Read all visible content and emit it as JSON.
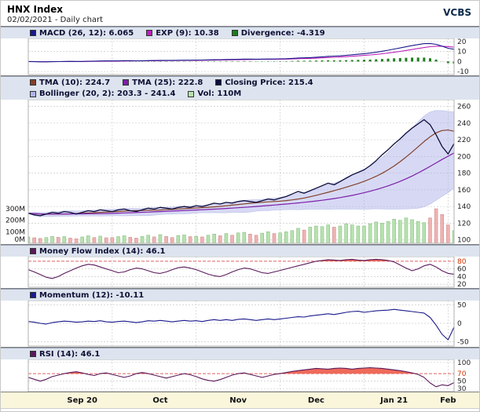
{
  "header": {
    "title": "HNX Index",
    "subtitle": "02/02/2021 - Daily chart",
    "brand": "VCBS"
  },
  "colors": {
    "macd": "#1a1a8c",
    "exp": "#bb22bb",
    "divergence": "#1e7d1e",
    "tma10": "#82402a",
    "tma25": "#7d1fa8",
    "close": "#0d0d3d",
    "bollinger_fill": "#b0b4ea",
    "bollinger_edge": "#8890d8",
    "vol_up": "#b6e2ae",
    "vol_up_border": "#7fb877",
    "vol_down": "#f0b2b2",
    "vol_down_border": "#c98585",
    "mfi": "#5a1a5a",
    "momentum": "#1a1a8c",
    "rsi": "#5a1a5a",
    "overbought_fill": "#ee6a5a",
    "threshold_line": "#e06060",
    "tick_red": "#cc3300",
    "grid": "#cccccc",
    "axis_text": "#222222"
  },
  "legends": {
    "macd": [
      {
        "label": "MACD (26, 12): 6.065"
      },
      {
        "label": "EXP (9): 10.38"
      },
      {
        "label": "Divergence: -4.319"
      }
    ],
    "price_row1": [
      {
        "label": "TMA (10): 224.7"
      },
      {
        "label": "TMA (25): 222.8"
      },
      {
        "label": "Closing Price: 215.4"
      }
    ],
    "price_row2": [
      {
        "label": "Bollinger (20, 2): 203.3 - 241.4"
      },
      {
        "label": "Vol: 110M"
      }
    ],
    "mfi": [
      {
        "label": "Money Flow Index (14): 46.1"
      }
    ],
    "momentum": [
      {
        "label": "Momentum (12): -10.11"
      }
    ],
    "rsi": [
      {
        "label": "RSI (14): 46.1"
      }
    ]
  },
  "chart_data": {
    "type": "line",
    "subtype": "multi-panel-financial",
    "title": "HNX Index - Daily chart - 02/02/2021",
    "n": 72,
    "x_labels": [
      "Sep 20",
      "Oct",
      "Nov",
      "Dec",
      "Jan 21",
      "Feb"
    ],
    "x_label_positions": [
      9,
      22,
      35,
      48,
      61,
      70
    ],
    "month_boundaries": [
      14,
      28,
      42,
      56,
      70
    ],
    "close": [
      132,
      130,
      129,
      131,
      133,
      132,
      134,
      133,
      131,
      133,
      135,
      134,
      136,
      135,
      134,
      136,
      137,
      135,
      134,
      136,
      138,
      137,
      139,
      138,
      137,
      139,
      140,
      139,
      141,
      140,
      142,
      144,
      143,
      145,
      144,
      146,
      147,
      146,
      145,
      147,
      149,
      148,
      150,
      152,
      155,
      158,
      156,
      159,
      162,
      165,
      168,
      166,
      170,
      174,
      178,
      181,
      184,
      189,
      195,
      202,
      208,
      215,
      221,
      228,
      234,
      239,
      244,
      238,
      226,
      212,
      203,
      215.4
    ],
    "volume_m": [
      55,
      48,
      42,
      50,
      60,
      52,
      58,
      45,
      40,
      55,
      65,
      50,
      62,
      48,
      50,
      58,
      65,
      52,
      45,
      60,
      70,
      55,
      75,
      60,
      50,
      68,
      72,
      58,
      60,
      55,
      70,
      80,
      65,
      85,
      70,
      90,
      95,
      80,
      70,
      88,
      100,
      85,
      90,
      100,
      110,
      130,
      115,
      140,
      150,
      145,
      160,
      140,
      150,
      170,
      160,
      150,
      150,
      170,
      185,
      175,
      190,
      210,
      200,
      220,
      205,
      190,
      180,
      220,
      300,
      250,
      160,
      110
    ],
    "mfi": [
      58,
      52,
      45,
      38,
      35,
      40,
      48,
      55,
      62,
      68,
      72,
      70,
      65,
      60,
      55,
      50,
      52,
      58,
      62,
      60,
      55,
      50,
      48,
      52,
      58,
      63,
      65,
      62,
      58,
      52,
      46,
      42,
      40,
      45,
      52,
      58,
      62,
      60,
      55,
      50,
      48,
      52,
      56,
      60,
      64,
      68,
      72,
      76,
      80,
      82,
      84,
      83,
      82,
      84,
      85,
      83,
      82,
      84,
      85,
      84,
      82,
      78,
      70,
      62,
      55,
      60,
      68,
      72,
      65,
      55,
      48,
      46.1
    ],
    "momentum": [
      5,
      3,
      0,
      -2,
      2,
      4,
      6,
      5,
      3,
      4,
      6,
      5,
      7,
      4,
      3,
      5,
      6,
      4,
      2,
      4,
      7,
      6,
      8,
      6,
      4,
      6,
      8,
      6,
      7,
      5,
      8,
      10,
      8,
      10,
      8,
      11,
      12,
      10,
      8,
      10,
      12,
      10,
      12,
      14,
      16,
      18,
      17,
      20,
      22,
      24,
      26,
      24,
      27,
      30,
      32,
      33,
      30,
      32,
      34,
      35,
      36,
      38,
      36,
      34,
      32,
      30,
      28,
      16,
      -5,
      -30,
      -45,
      -10.11
    ],
    "rsi": [
      60,
      55,
      50,
      55,
      62,
      66,
      70,
      73,
      75,
      72,
      68,
      65,
      70,
      72,
      68,
      64,
      60,
      64,
      70,
      73,
      70,
      66,
      62,
      58,
      62,
      66,
      70,
      67,
      62,
      56,
      52,
      50,
      54,
      60,
      66,
      70,
      72,
      68,
      64,
      60,
      64,
      68,
      70,
      73,
      76,
      78,
      80,
      82,
      84,
      83,
      82,
      84,
      85,
      84,
      82,
      84,
      85,
      86,
      85,
      84,
      82,
      80,
      78,
      75,
      72,
      68,
      60,
      45,
      35,
      40,
      38,
      46.1
    ],
    "panels": {
      "macd": {
        "ticks": [
          20,
          10,
          0,
          -10
        ],
        "ylim": [
          -13,
          23
        ],
        "periods": {
          "slow": 26,
          "fast": 12,
          "signal": 9
        },
        "macd_current": 6.065,
        "exp_current": 10.38,
        "divergence_current": -4.319
      },
      "price": {
        "ticks": [
          260,
          240,
          220,
          200,
          180,
          160,
          140,
          120,
          100
        ],
        "ylim": [
          96,
          268
        ],
        "volume_ticks_m": [
          300,
          200,
          100,
          0
        ],
        "tma10_current": 224.7,
        "tma25_current": 222.8,
        "close_current": 215.4,
        "bollinger": {
          "period": 20,
          "mult": 2,
          "lower_current": 203.3,
          "upper_current": 241.4
        },
        "vol_current_m": 110
      },
      "mfi": {
        "ticks": [
          80,
          60,
          40,
          20
        ],
        "ylim": [
          12,
          92
        ],
        "overbought": 80,
        "current": 46.1
      },
      "momentum": {
        "ticks": [
          50,
          0,
          -50
        ],
        "ylim": [
          -62,
          62
        ],
        "current": -10.11
      },
      "rsi": {
        "ticks": [
          100,
          70,
          50,
          30
        ],
        "ylim": [
          22,
          108
        ],
        "overbought": 70,
        "current": 46.1
      }
    }
  }
}
